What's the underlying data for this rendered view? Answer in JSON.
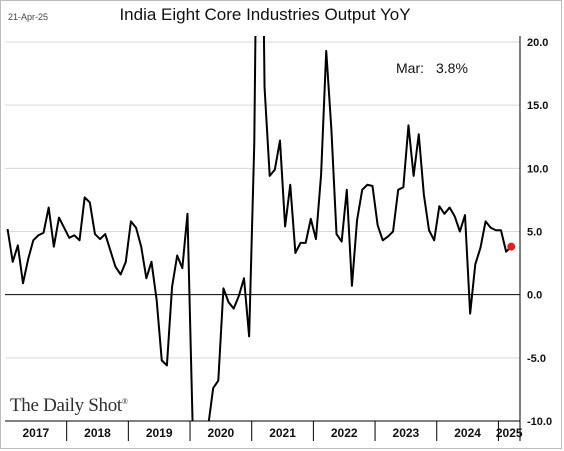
{
  "header": {
    "date": "21-Apr-25",
    "title": "India Eight Core Industries Output YoY"
  },
  "annotation": {
    "label": "Mar:",
    "value": "3.8%"
  },
  "logo": {
    "text": "The Daily Shot",
    "mark": "®"
  },
  "chart_data": {
    "type": "line",
    "title": "India Eight Core Industries Output YoY",
    "xlabel": "",
    "ylabel": "",
    "ylim": [
      -10,
      20
    ],
    "y_ticks": [
      "20.0",
      "15.0",
      "10.0",
      "5.0",
      "0.0",
      "-5.0",
      "-10.0"
    ],
    "x_ticks": [
      "2017",
      "2018",
      "2019",
      "2020",
      "2021",
      "2022",
      "2023",
      "2024",
      "2025"
    ],
    "grid": "horizontal",
    "y_axis_side": "right",
    "line_color": "#000000",
    "last_point_color": "#e02020",
    "x": [
      "2017-01",
      "2017-02",
      "2017-03",
      "2017-04",
      "2017-05",
      "2017-06",
      "2017-07",
      "2017-08",
      "2017-09",
      "2017-10",
      "2017-11",
      "2017-12",
      "2018-01",
      "2018-02",
      "2018-03",
      "2018-04",
      "2018-05",
      "2018-06",
      "2018-07",
      "2018-08",
      "2018-09",
      "2018-10",
      "2018-11",
      "2018-12",
      "2019-01",
      "2019-02",
      "2019-03",
      "2019-04",
      "2019-05",
      "2019-06",
      "2019-07",
      "2019-08",
      "2019-09",
      "2019-10",
      "2019-11",
      "2019-12",
      "2020-01",
      "2020-02",
      "2020-03",
      "2020-04",
      "2020-05",
      "2020-06",
      "2020-07",
      "2020-08",
      "2020-09",
      "2020-10",
      "2020-11",
      "2020-12",
      "2021-01",
      "2021-02",
      "2021-03",
      "2021-04",
      "2021-05",
      "2021-06",
      "2021-07",
      "2021-08",
      "2021-09",
      "2021-10",
      "2021-11",
      "2021-12",
      "2022-01",
      "2022-02",
      "2022-03",
      "2022-04",
      "2022-05",
      "2022-06",
      "2022-07",
      "2022-08",
      "2022-09",
      "2022-10",
      "2022-11",
      "2022-12",
      "2023-01",
      "2023-02",
      "2023-03",
      "2023-04",
      "2023-05",
      "2023-06",
      "2023-07",
      "2023-08",
      "2023-09",
      "2023-10",
      "2023-11",
      "2023-12",
      "2024-01",
      "2024-02",
      "2024-03",
      "2024-04",
      "2024-05",
      "2024-06",
      "2024-07",
      "2024-08",
      "2024-09",
      "2024-10",
      "2024-11",
      "2024-12",
      "2025-01",
      "2025-02",
      "2025-03"
    ],
    "series": [
      {
        "values": [
          5.2,
          2.6,
          3.9,
          0.9,
          2.8,
          4.3,
          4.7,
          4.9,
          6.9,
          3.8,
          6.1,
          5.3,
          4.5,
          4.7,
          4.3,
          7.7,
          7.3,
          4.8,
          4.4,
          4.8,
          3.5,
          2.2,
          1.6,
          2.6,
          5.8,
          5.3,
          3.8,
          1.3,
          2.6,
          -0.4,
          -5.2,
          -5.6,
          0.6,
          3.1,
          2.1,
          6.4,
          -10.2,
          -10.6,
          -10.5,
          -10.5,
          -7.4,
          -6.8,
          0.5,
          -0.6,
          -1.1,
          -0.1,
          1.3,
          -3.3,
          12.0,
          50.0,
          16.4,
          9.4,
          9.9,
          12.2,
          5.4,
          8.7,
          3.3,
          4.1,
          4.1,
          6.0,
          4.4,
          9.5,
          19.3,
          13.1,
          4.8,
          4.2,
          8.3,
          0.7,
          5.9,
          8.3,
          8.7,
          8.6,
          5.5,
          4.3,
          4.6,
          5.0,
          8.3,
          8.5,
          13.4,
          9.4,
          12.7,
          7.9,
          5.1,
          4.3,
          7.0,
          6.4,
          6.9,
          6.2,
          5.0,
          6.3,
          -1.5,
          2.4,
          3.7,
          5.8,
          5.3,
          5.1,
          5.1,
          3.4,
          3.8
        ]
      }
    ]
  }
}
